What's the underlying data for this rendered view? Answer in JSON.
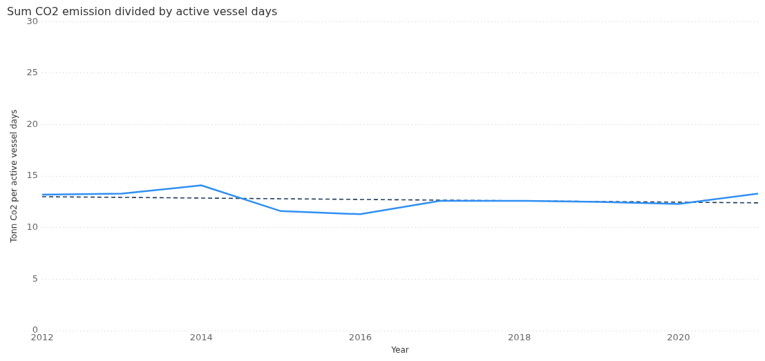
{
  "chart_data": {
    "type": "line",
    "title": "Sum CO2 emission divided by active vessel days",
    "xlabel": "Year",
    "ylabel": "Tonn Co2 per active vessel days",
    "x": [
      2012,
      2013,
      2014,
      2015,
      2016,
      2017,
      2018,
      2019,
      2020,
      2021
    ],
    "series": [
      {
        "color": "#2f8ff5",
        "values": [
          13.2,
          13.3,
          14.1,
          11.6,
          11.3,
          12.6,
          12.6,
          12.5,
          12.3,
          13.3
        ]
      },
      {
        "type": "line",
        "color": "#1f3b5c",
        "line_style": "dashed",
        "x": [
          2012,
          2021
        ],
        "values": [
          13.0,
          12.4
        ]
      }
    ],
    "xlim": [
      2012,
      2021
    ],
    "xticks": [
      2012,
      2014,
      2016,
      2018,
      2020
    ],
    "ylim": [
      0,
      30
    ],
    "yticks": [
      0,
      5,
      10,
      15,
      20,
      25,
      30
    ],
    "grid": "y",
    "legend": false,
    "marker": "none",
    "line_style": "solid"
  }
}
